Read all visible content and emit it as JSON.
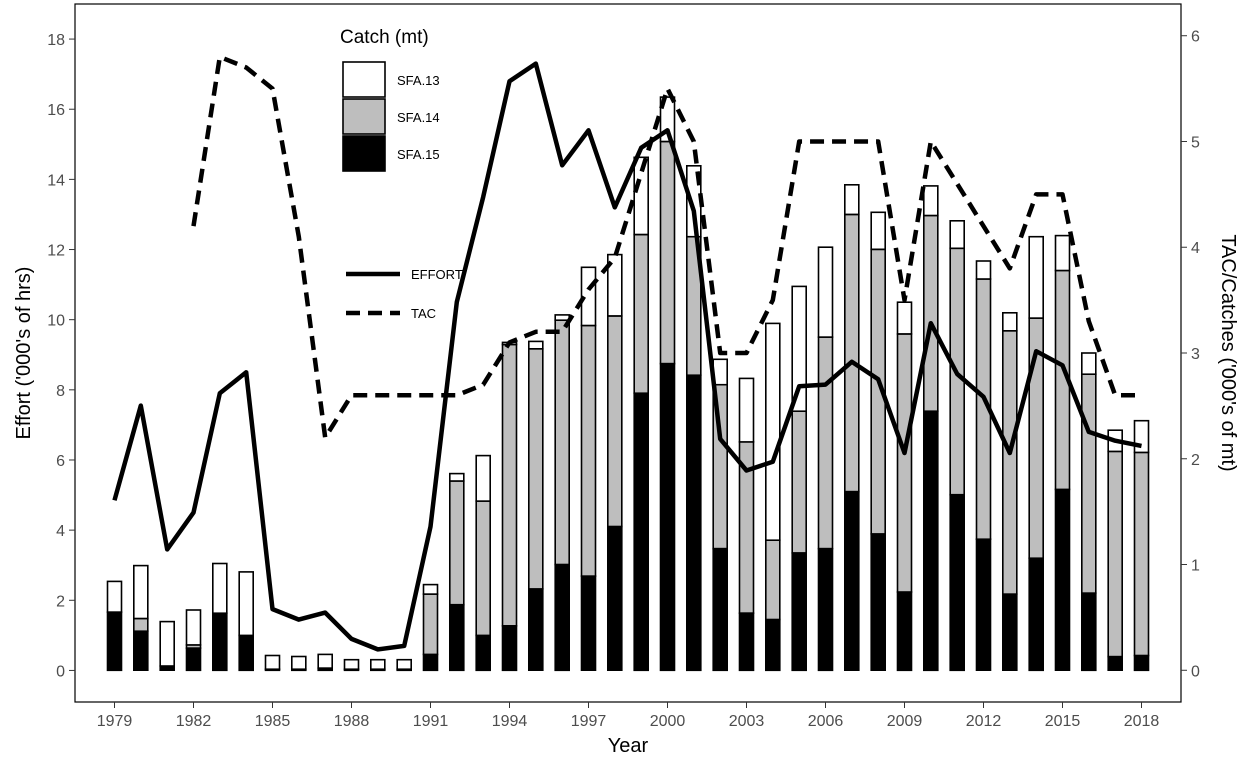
{
  "chart_data": {
    "type": "bar",
    "stacked": true,
    "xlabel": "Year",
    "ylabel_left": "Effort ('000's of hrs)",
    "ylabel_right": "TAC/Catches ('000's of mt)",
    "ylim_left": [
      0,
      18
    ],
    "ylim_right": [
      0,
      6
    ],
    "xlim": [
      1979,
      2018
    ],
    "x_ticks": [
      1979,
      1982,
      1985,
      1988,
      1991,
      1994,
      1997,
      2000,
      2003,
      2006,
      2009,
      2012,
      2015,
      2018
    ],
    "y_ticks_left": [
      0,
      2,
      4,
      6,
      8,
      10,
      12,
      14,
      16,
      18
    ],
    "y_ticks_right": [
      0,
      1,
      2,
      3,
      4,
      5,
      6
    ],
    "grid": false,
    "categories": [
      1979,
      1980,
      1981,
      1982,
      1983,
      1984,
      1985,
      1986,
      1987,
      1988,
      1989,
      1990,
      1991,
      1992,
      1993,
      1994,
      1995,
      1996,
      1997,
      1998,
      1999,
      2000,
      2001,
      2002,
      2003,
      2004,
      2005,
      2006,
      2007,
      2008,
      2009,
      2010,
      2011,
      2012,
      2013,
      2014,
      2015,
      2016,
      2017,
      2018
    ],
    "catch_legend_title": "Catch (mt)",
    "series": [
      {
        "name": "SFA.15",
        "axis": "right",
        "color": "#000000",
        "values": [
          0.55,
          0.37,
          0.04,
          0.21,
          0.54,
          0.33,
          0.01,
          0.01,
          0.02,
          0.01,
          0.01,
          0.01,
          0.15,
          0.62,
          0.33,
          0.42,
          0.77,
          1.0,
          0.89,
          1.36,
          2.62,
          2.9,
          2.79,
          1.15,
          0.54,
          0.48,
          1.11,
          1.15,
          1.69,
          1.29,
          0.74,
          2.45,
          1.66,
          1.24,
          0.72,
          1.06,
          1.71,
          0.73,
          0.13,
          0.14
        ]
      },
      {
        "name": "SFA.14",
        "axis": "right",
        "color": "#bebebe",
        "values": [
          0.0,
          0.12,
          0.0,
          0.03,
          0.0,
          0.0,
          0.0,
          0.0,
          0.0,
          0.0,
          0.0,
          0.0,
          0.57,
          1.17,
          1.27,
          2.66,
          2.27,
          2.31,
          2.37,
          1.99,
          1.5,
          2.1,
          1.31,
          1.55,
          1.62,
          0.75,
          1.34,
          2.0,
          2.62,
          2.69,
          2.44,
          1.85,
          2.33,
          2.46,
          2.49,
          2.27,
          2.07,
          2.07,
          1.94,
          1.92
        ]
      },
      {
        "name": "SFA.13",
        "axis": "right",
        "color": "#ffffff",
        "values": [
          0.29,
          0.5,
          0.42,
          0.33,
          0.47,
          0.6,
          0.13,
          0.12,
          0.13,
          0.09,
          0.09,
          0.09,
          0.09,
          0.07,
          0.43,
          0.02,
          0.07,
          0.05,
          0.55,
          0.58,
          0.73,
          0.42,
          0.67,
          0.24,
          0.6,
          2.05,
          1.18,
          0.85,
          0.28,
          0.35,
          0.3,
          0.28,
          0.26,
          0.17,
          0.17,
          0.77,
          0.33,
          0.2,
          0.2,
          0.3
        ]
      },
      {
        "name": "EFFORT",
        "type": "line",
        "style": "solid",
        "axis": "left",
        "x": [
          1979,
          1980,
          1981,
          1982,
          1983,
          1984,
          1985,
          1986,
          1987,
          1988,
          1989,
          1990,
          1991,
          1992,
          1993,
          1994,
          1995,
          1996,
          1997,
          1998,
          1999,
          2000,
          2001,
          2002,
          2003,
          2004,
          2005,
          2006,
          2007,
          2008,
          2009,
          2010,
          2011,
          2012,
          2013,
          2014,
          2015,
          2016,
          2017,
          2018
        ],
        "values": [
          4.85,
          7.55,
          3.45,
          4.5,
          7.9,
          8.5,
          1.75,
          1.45,
          1.65,
          0.9,
          0.6,
          0.7,
          4.1,
          10.5,
          13.5,
          16.8,
          17.3,
          14.4,
          15.4,
          13.2,
          14.9,
          15.4,
          13.1,
          6.6,
          5.7,
          5.95,
          8.1,
          8.15,
          8.8,
          8.3,
          6.2,
          9.9,
          8.45,
          7.8,
          6.2,
          9.1,
          8.7,
          6.8,
          6.55,
          6.4
        ]
      },
      {
        "name": "TAC",
        "type": "line",
        "style": "dashed",
        "axis": "right",
        "x": [
          1982,
          1983,
          1984,
          1985,
          1986,
          1987,
          1988,
          1989,
          1990,
          1991,
          1992,
          1993,
          1994,
          1995,
          1996,
          1997,
          1998,
          1999,
          2000,
          2001,
          2002,
          2003,
          2004,
          2005,
          2006,
          2007,
          2008,
          2009,
          2010,
          2011,
          2012,
          2013,
          2014,
          2015,
          2016,
          2017,
          2018
        ],
        "values": [
          4.2,
          5.8,
          5.7,
          5.5,
          4.1,
          2.2,
          2.6,
          2.6,
          2.6,
          2.6,
          2.6,
          2.7,
          3.1,
          3.2,
          3.2,
          3.6,
          3.9,
          4.7,
          5.5,
          5.0,
          3.0,
          3.0,
          3.5,
          5.0,
          5.0,
          5.0,
          5.0,
          3.5,
          5.0,
          4.6,
          4.2,
          3.8,
          4.5,
          4.5,
          3.3,
          2.6,
          2.6
        ]
      }
    ]
  }
}
